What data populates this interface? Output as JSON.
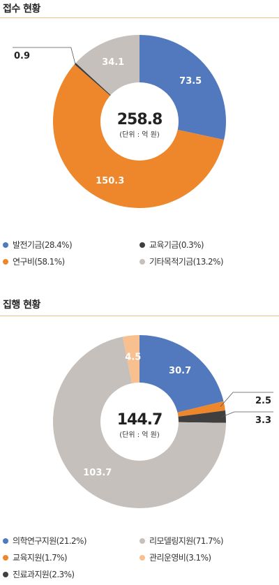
{
  "sections": [
    {
      "title": "접수 현황"
    },
    {
      "title": "집행 현황"
    }
  ],
  "chart_data": [
    {
      "type": "pie",
      "donut": true,
      "center_total": "258.8",
      "center_unit": "(단위 : 억 원)",
      "slices": [
        {
          "label": "발전기금(28.4%)",
          "value": 73.5,
          "value_label": "73.5",
          "color": "#5279be"
        },
        {
          "label": "교육기금(0.3%)",
          "value": 0.9,
          "value_label": "0.9",
          "color": "#3f3f3f",
          "callout": "left"
        },
        {
          "label": "연구비(58.1%)",
          "value": 150.3,
          "value_label": "150.3",
          "color": "#ee862b"
        },
        {
          "label": "기타목적기금(13.2%)",
          "value": 34.1,
          "value_label": "34.1",
          "color": "#c5c0bb"
        }
      ],
      "slice_order": [
        0,
        2,
        1,
        3
      ],
      "legend_order": [
        0,
        1,
        2,
        3
      ]
    },
    {
      "type": "pie",
      "donut": true,
      "center_total": "144.7",
      "center_unit": "(단위 : 억 원)",
      "slices": [
        {
          "label": "의학연구지원(21.2%)",
          "value": 30.7,
          "value_label": "30.7",
          "color": "#5279be"
        },
        {
          "label": "리모델링지원(71.7%)",
          "value": 103.7,
          "value_label": "103.7",
          "color": "#c5c0bb"
        },
        {
          "label": "교육지원(1.7%)",
          "value": 2.5,
          "value_label": "2.5",
          "color": "#ee862b",
          "callout": "right"
        },
        {
          "label": "관리운영비(3.1%)",
          "value": 4.5,
          "value_label": "4.5",
          "color": "#f8c08f"
        },
        {
          "label": "진료과지원(2.3%)",
          "value": 3.3,
          "value_label": "3.3",
          "color": "#3f3f3f",
          "callout": "right"
        }
      ],
      "slice_order": [
        0,
        2,
        4,
        1,
        3
      ],
      "legend_order": [
        0,
        1,
        2,
        3,
        4
      ]
    }
  ]
}
